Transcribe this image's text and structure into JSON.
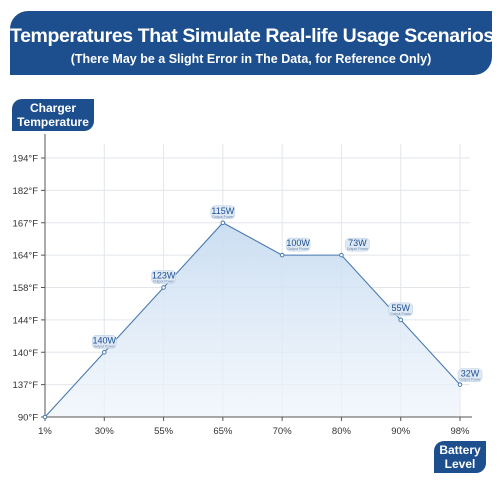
{
  "header": {
    "title": "Temperatures That Simulate Real-life Usage Scenarios",
    "subtitle": "(There May be a Slight Error in The Data, for Reference Only)"
  },
  "chart_data": {
    "type": "area",
    "ylabel_lines": [
      "Charger",
      "Temperature"
    ],
    "xlabel_lines": [
      "Battery",
      "Level"
    ],
    "categories": [
      "1%",
      "30%",
      "55%",
      "65%",
      "70%",
      "80%",
      "90%",
      "98%"
    ],
    "y_ticks": [
      "90°F",
      "137°F",
      "140°F",
      "144°F",
      "158°F",
      "164°F",
      "167°F",
      "182°F",
      "194°F"
    ],
    "series": [
      {
        "values": [
          "90°F",
          "140°F",
          "158°F",
          "167°F",
          "164°F",
          "164°F",
          "144°F",
          "137°F"
        ],
        "labels": [
          "",
          "140W",
          "123W",
          "115W",
          "100W",
          "73W",
          "55W",
          "32W"
        ],
        "sublabel": "Output Power"
      }
    ],
    "grid": true,
    "colors": {
      "line": "#4a7ab0",
      "fill": "#cfe0f3",
      "accent": "#1d4f8e"
    }
  }
}
